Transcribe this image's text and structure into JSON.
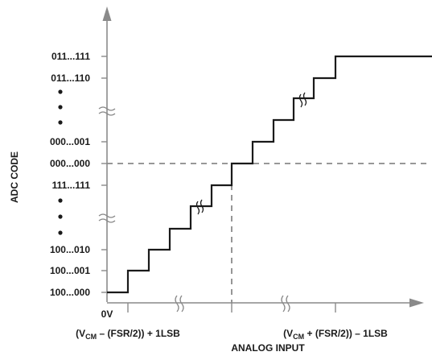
{
  "chart_data": {
    "type": "line",
    "title": "",
    "xlabel": "ANALOG INPUT",
    "ylabel": "ADC CODE",
    "x_origin_label": "0V",
    "x_tick_labels": [
      {
        "key": "left",
        "sub": "CM",
        "pre": "(V",
        "post": " – (FSR/2)) + 1LSB"
      },
      {
        "key": "right",
        "sub": "CM",
        "pre": "(V",
        "post": " + (FSR/2)) – 1LSB"
      }
    ],
    "y_tick_labels": [
      "100...000",
      "100...001",
      "100...010",
      "111...111",
      "000...000",
      "000...001",
      "011...110",
      "011...111"
    ],
    "x_axis_break": true,
    "y_axis_break": true,
    "midscale_reference": "dashed",
    "grid": false,
    "legend": "none",
    "series": [
      {
        "steps": [
          {
            "x": 0,
            "y": 0
          },
          {
            "x": 1,
            "y": 1
          },
          {
            "x": 2,
            "y": 2
          },
          {
            "x": 3,
            "y": 3
          },
          {
            "x": 4,
            "y": 4
          },
          {
            "x": 5,
            "y": 5
          },
          {
            "x": 6,
            "y": 6
          },
          {
            "x": 7,
            "y": 7
          },
          {
            "x": 8,
            "y": 8
          },
          {
            "x": 9,
            "y": 9
          },
          {
            "x": 10,
            "y": 10
          },
          {
            "x": 11,
            "y": 11
          },
          {
            "x": 12,
            "y": 12
          },
          {
            "x": 13,
            "y": 13
          },
          {
            "x": 14,
            "y": 14
          }
        ]
      }
    ]
  }
}
